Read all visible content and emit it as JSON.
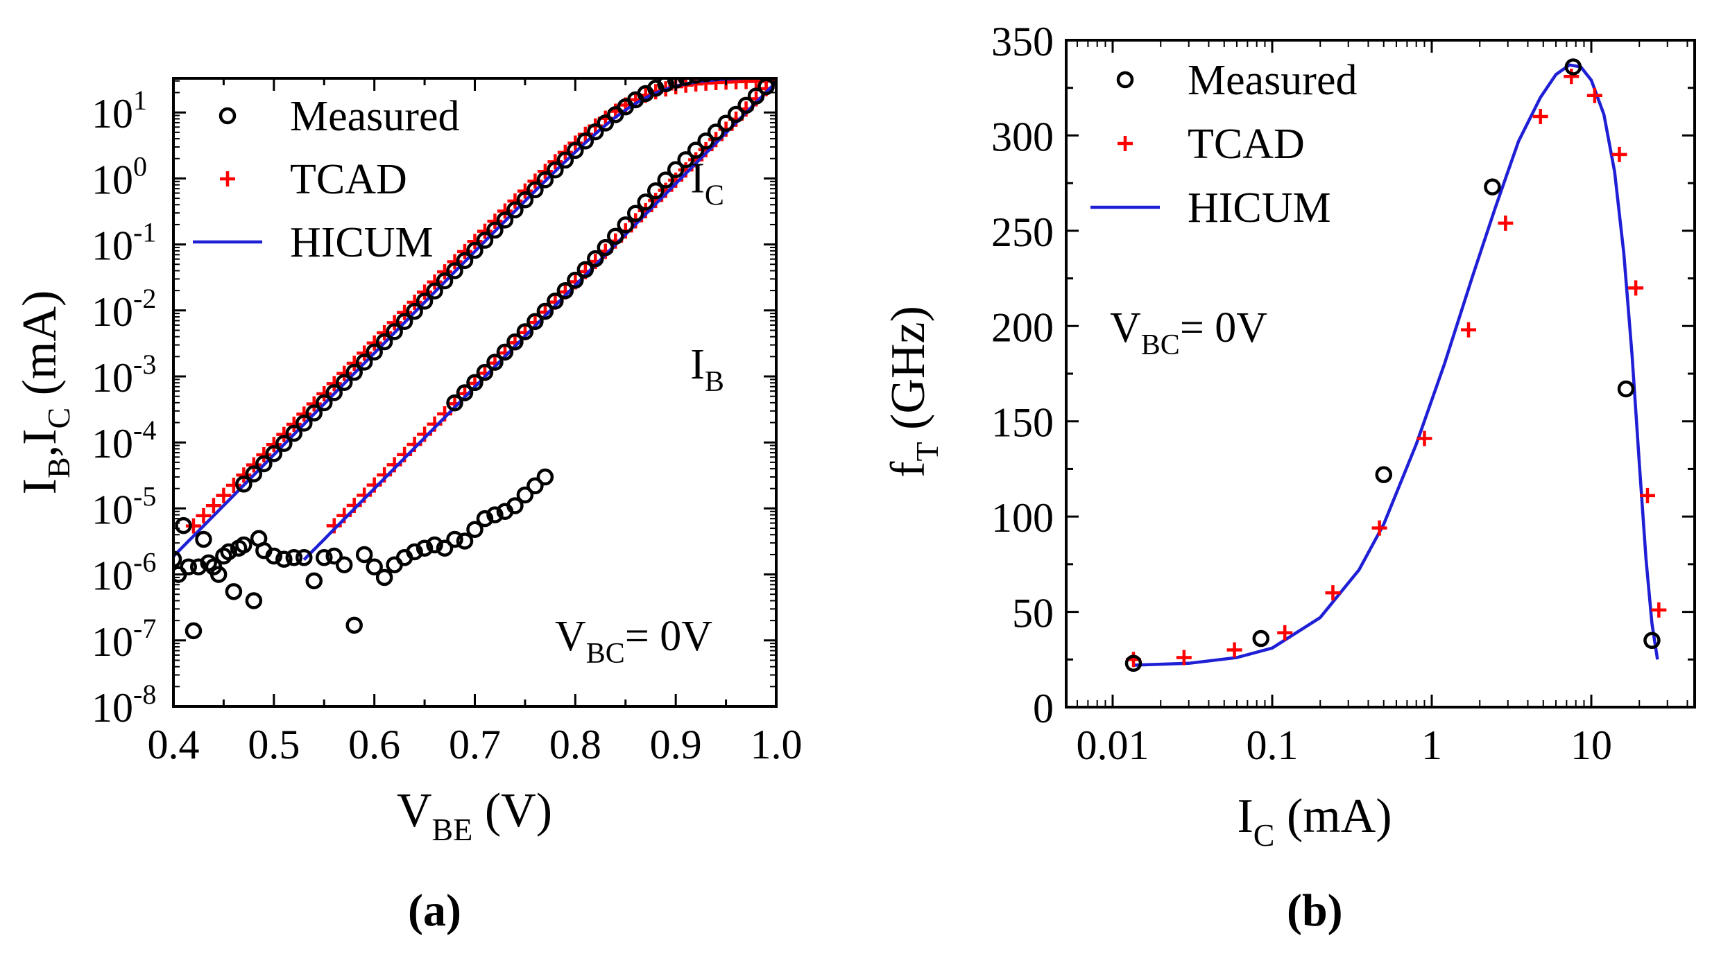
{
  "colors": {
    "measured": "#000000",
    "tcad": "#ff0000",
    "hicum": "#1f1fd6",
    "axis": "#000000"
  },
  "chart_data": [
    {
      "id": "a",
      "panel_label": "(a)",
      "type": "scatter",
      "xscale": "linear",
      "yscale": "log",
      "xlim": [
        0.4,
        1.0
      ],
      "ylim": [
        1e-08,
        50
      ],
      "xticks": [
        0.4,
        0.5,
        0.6,
        0.7,
        0.8,
        0.9,
        1.0
      ],
      "xtick_labels": [
        "0.4",
        "0.5",
        "0.6",
        "0.7",
        "0.8",
        "0.9",
        "1.0"
      ],
      "ytick_exponents": [
        -8,
        -7,
        -6,
        -5,
        -4,
        -3,
        -2,
        -1,
        0,
        1
      ],
      "xlabel": {
        "main": "V",
        "sub": "BE",
        "rest": " (V)"
      },
      "ylabel": {
        "p1": "I",
        "s1": "B",
        "p2": ",I",
        "s2": "C",
        "rest": " (mA)"
      },
      "annotation": {
        "main": "V",
        "sub": "BC",
        "rest": "= 0V"
      },
      "curve_labels": [
        {
          "main": "I",
          "sub": "C",
          "at": [
            0.88,
            1.0
          ]
        },
        {
          "main": "I",
          "sub": "B",
          "at": [
            0.88,
            0.0015
          ]
        }
      ],
      "legend": [
        "Measured",
        "TCAD",
        "HICUM"
      ],
      "legend_position": "top-left",
      "series": [
        {
          "name": "Measured",
          "role": "IC",
          "model": {
            "type": "ic",
            "vt": 0.0282,
            "I0": 1.35e-12,
            "Ik": 45,
            "vstart": 0.47,
            "vend": 1.0,
            "step": 0.01
          }
        },
        {
          "name": "Measured",
          "role": "IB",
          "model": {
            "type": "ib",
            "vt": 0.0282,
            "I0": 1.34e-14,
            "Ik": 1000000000.0,
            "vstart": 0.68,
            "vend": 1.0,
            "step": 0.01,
            "bump": 0.4
          }
        },
        {
          "name": "Measured",
          "role": "noise",
          "points": [
            [
              0.4,
              1.7e-06
            ],
            [
              0.405,
              1e-06
            ],
            [
              0.41,
              5.5e-06
            ],
            [
              0.415,
              1.3e-06
            ],
            [
              0.42,
              1.4e-07
            ],
            [
              0.425,
              1.3e-06
            ],
            [
              0.43,
              3.4e-06
            ],
            [
              0.435,
              1.5e-06
            ],
            [
              0.44,
              1.3e-06
            ],
            [
              0.445,
              1e-06
            ],
            [
              0.45,
              1.9e-06
            ],
            [
              0.455,
              2.2e-06
            ],
            [
              0.46,
              5.5e-07
            ],
            [
              0.465,
              2.5e-06
            ],
            [
              0.47,
              2.8e-06
            ],
            [
              0.48,
              4e-07
            ],
            [
              0.485,
              3.5e-06
            ],
            [
              0.49,
              2.3e-06
            ],
            [
              0.5,
              1.9e-06
            ],
            [
              0.51,
              1.7e-06
            ],
            [
              0.52,
              1.8e-06
            ],
            [
              0.53,
              1.8e-06
            ],
            [
              0.54,
              8e-07
            ],
            [
              0.55,
              1.8e-06
            ],
            [
              0.56,
              1.9e-06
            ],
            [
              0.57,
              1.4e-06
            ],
            [
              0.58,
              1.7e-07
            ],
            [
              0.59,
              2e-06
            ],
            [
              0.6,
              1.3e-06
            ],
            [
              0.61,
              9e-07
            ],
            [
              0.62,
              1.4e-06
            ],
            [
              0.63,
              1.8e-06
            ],
            [
              0.64,
              2.2e-06
            ],
            [
              0.65,
              2.5e-06
            ],
            [
              0.66,
              2.8e-06
            ],
            [
              0.67,
              2.5e-06
            ],
            [
              0.68,
              3.4e-06
            ],
            [
              0.69,
              3.2e-06
            ],
            [
              0.7,
              4.8e-06
            ],
            [
              0.71,
              7e-06
            ],
            [
              0.72,
              8e-06
            ],
            [
              0.73,
              9e-06
            ],
            [
              0.74,
              1.1e-05
            ],
            [
              0.75,
              1.6e-05
            ],
            [
              0.76,
              2.2e-05
            ],
            [
              0.77,
              3e-05
            ]
          ]
        },
        {
          "name": "TCAD",
          "role": "IC",
          "model": {
            "type": "ic",
            "vt": 0.0282,
            "I0": 1.85e-12,
            "Ik": 30,
            "vstart": 0.42,
            "vend": 1.0,
            "step": 0.01
          }
        },
        {
          "name": "TCAD",
          "role": "IB",
          "model": {
            "type": "ib",
            "vt": 0.0282,
            "I0": 1.3e-14,
            "Ik": 1000000000.0,
            "vstart": 0.56,
            "vend": 1.0,
            "step": 0.01,
            "bump": 0
          }
        },
        {
          "name": "HICUM",
          "role": "IC",
          "model": {
            "type": "ic",
            "vt": 0.0282,
            "I0": 1.3e-12,
            "Ik": 34,
            "vstart": 0.4,
            "vend": 1.0,
            "step": 0.005
          }
        },
        {
          "name": "HICUM",
          "role": "IB",
          "model": {
            "type": "ib",
            "vt": 0.0282,
            "I0": 1.15e-14,
            "Ik": 1000000000.0,
            "vstart": 0.53,
            "vend": 1.0,
            "step": 0.005,
            "bump": 0
          }
        }
      ]
    },
    {
      "id": "b",
      "panel_label": "(b)",
      "type": "scatter",
      "xscale": "log",
      "yscale": "linear",
      "xlim": [
        0.005,
        40
      ],
      "ylim": [
        0,
        350
      ],
      "xticks": [
        0.01,
        0.1,
        1,
        10
      ],
      "xtick_labels": [
        "0.01",
        "0.1",
        "1",
        "10"
      ],
      "yticks": [
        0,
        50,
        100,
        150,
        200,
        250,
        300,
        350
      ],
      "ytick_labels": [
        "0",
        "50",
        "100",
        "150",
        "200",
        "250",
        "300",
        "350"
      ],
      "xlabel": {
        "main": "I",
        "sub": "C",
        "rest": " (mA)"
      },
      "ylabel": {
        "main": "f",
        "sub": "T",
        "rest": " (GHz)"
      },
      "annotation": {
        "main": "V",
        "sub": "BC",
        "rest": "= 0V"
      },
      "legend": [
        "Measured",
        "TCAD",
        "HICUM"
      ],
      "legend_position": "top-left",
      "series": [
        {
          "name": "Measured",
          "points": [
            [
              0.0135,
              23
            ],
            [
              0.085,
              36
            ],
            [
              0.5,
              122
            ],
            [
              2.4,
              273
            ],
            [
              7.7,
              336
            ],
            [
              16.5,
              167
            ],
            [
              24,
              35
            ]
          ]
        },
        {
          "name": "TCAD",
          "points": [
            [
              0.0135,
              25
            ],
            [
              0.028,
              26
            ],
            [
              0.058,
              30
            ],
            [
              0.12,
              39
            ],
            [
              0.24,
              60
            ],
            [
              0.47,
              94
            ],
            [
              0.9,
              141
            ],
            [
              1.7,
              198
            ],
            [
              2.9,
              254
            ],
            [
              4.8,
              310
            ],
            [
              7.5,
              331
            ],
            [
              10.5,
              321
            ],
            [
              15,
              290
            ],
            [
              19,
              220
            ],
            [
              22.5,
              111
            ],
            [
              26.5,
              51
            ]
          ]
        },
        {
          "name": "HICUM",
          "points": [
            [
              0.0135,
              22
            ],
            [
              0.03,
              23
            ],
            [
              0.06,
              26
            ],
            [
              0.1,
              31
            ],
            [
              0.2,
              47
            ],
            [
              0.35,
              72
            ],
            [
              0.5,
              96
            ],
            [
              0.8,
              138
            ],
            [
              1.2,
              180
            ],
            [
              1.8,
              226
            ],
            [
              2.5,
              262
            ],
            [
              3.5,
              297
            ],
            [
              4.8,
              320
            ],
            [
              6.0,
              332
            ],
            [
              7.3,
              337
            ],
            [
              8.6,
              336
            ],
            [
              10.0,
              329
            ],
            [
              12.0,
              311
            ],
            [
              14.0,
              281
            ],
            [
              16.0,
              238
            ],
            [
              18.0,
              185
            ],
            [
              20.0,
              128
            ],
            [
              22.0,
              78
            ],
            [
              24.0,
              44
            ],
            [
              26.0,
              25
            ]
          ]
        }
      ]
    }
  ]
}
